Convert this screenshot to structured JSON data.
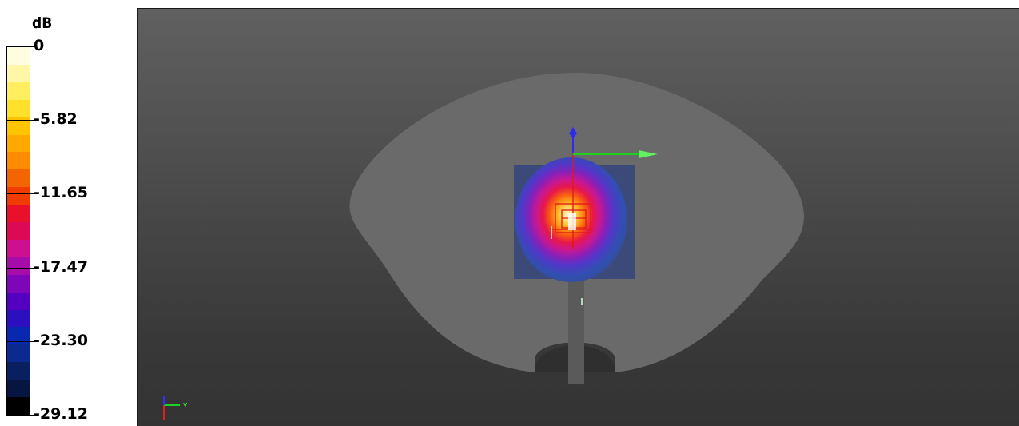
{
  "legend": {
    "unit": "dB",
    "ticks": [
      {
        "label": "0",
        "fraction": 0.0
      },
      {
        "label": "-5.82",
        "fraction": 0.2
      },
      {
        "label": "-11.65",
        "fraction": 0.4
      },
      {
        "label": "-17.47",
        "fraction": 0.6
      },
      {
        "label": "-23.30",
        "fraction": 0.8
      },
      {
        "label": "-29.12",
        "fraction": 1.0
      }
    ],
    "colors": [
      "#fffde0",
      "#fff7a8",
      "#ffee60",
      "#ffe02a",
      "#ffc400",
      "#ffa800",
      "#ff8c00",
      "#f26500",
      "#f03c00",
      "#e8102a",
      "#dc0a55",
      "#cc1090",
      "#a80ca8",
      "#7c06b8",
      "#5400c0",
      "#2c10c0",
      "#0828b0",
      "#0a2a90",
      "#082060",
      "#061640",
      "#000000"
    ]
  },
  "viewport": {
    "axes_triad_label": "y"
  }
}
